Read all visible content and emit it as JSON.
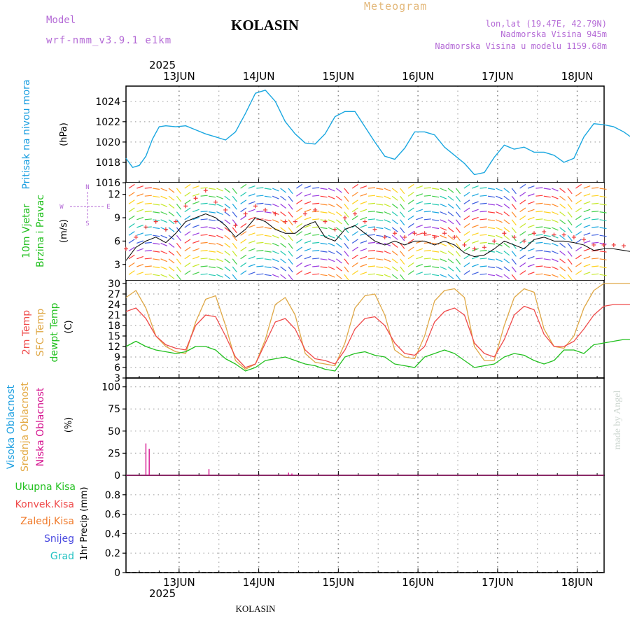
{
  "header": {
    "model_label": "Model",
    "model_name": "wrf-nmm_v3.9.1 e1km",
    "station": "KOLASIN",
    "product": "Meteogram",
    "lonlat": "lon,lat (19.47E, 42.79N)",
    "elevation": "Nadmorska Visina 945m",
    "model_elevation": "Nadmorska Visina u modelu 1159.68m",
    "year": "2025",
    "footer_station": "KOLASIN",
    "watermark": "made by Angel"
  },
  "colors": {
    "pressure": "#1aa7e0",
    "temp2m": "#ef4b4b",
    "sfc": "#dfa846",
    "dew": "#22c01f",
    "cloud_low": "#d5138f",
    "cloud_high": "#1a9ee0",
    "cloud_mid": "#e3a841",
    "wind_speed": "#111111",
    "gust": "#ee3a3a",
    "label_purple": "#b46ad6"
  },
  "x_axis": {
    "day_labels": [
      "13JUN",
      "14JUN",
      "15JUN",
      "16JUN",
      "17JUN",
      "18JUN"
    ]
  },
  "chart_data": [
    {
      "type": "line",
      "id": "pressure",
      "ylabel_lines": [
        "Pritisak na nivou mora"
      ],
      "unit": "(hPa)",
      "ylim": [
        1016,
        1025.5
      ],
      "yticks": [
        1016,
        1018,
        1020,
        1022,
        1024
      ],
      "grid": true,
      "x_hours": [
        0,
        2,
        4,
        6,
        8,
        10,
        12,
        15,
        18,
        21,
        24,
        27,
        30,
        33,
        36,
        39,
        42,
        45,
        48,
        51,
        54,
        57,
        60,
        63,
        66,
        69,
        72,
        75,
        78,
        81,
        84,
        87,
        90,
        93,
        96,
        99,
        102,
        105,
        108,
        111,
        114,
        117,
        120,
        123,
        126,
        129,
        132,
        135,
        138,
        141,
        144,
        147,
        150,
        153,
        156,
        159,
        162,
        165,
        168,
        171,
        174,
        177,
        180,
        183
      ],
      "series": [
        {
          "values": [
            1018.4,
            1017.5,
            1017.7,
            1018.6,
            1020.3,
            1021.5,
            1021.6,
            1021.5,
            1021.6,
            1021.2,
            1020.8,
            1020.5,
            1020.2,
            1021.0,
            1022.8,
            1024.8,
            1025.1,
            1024.0,
            1022.0,
            1020.8,
            1019.9,
            1019.8,
            1020.8,
            1022.5,
            1023.0,
            1023.0,
            1021.5,
            1020.0,
            1018.6,
            1018.3,
            1019.4,
            1021.0,
            1021.0,
            1020.7,
            1019.5,
            1018.7,
            1017.9,
            1016.8,
            1017.0,
            1018.5,
            1019.7,
            1019.3,
            1019.5,
            1019.0,
            1019.0,
            1018.7,
            1018.0,
            1018.4,
            1020.5,
            1021.8,
            1021.7,
            1021.5,
            1021.0,
            1020.3,
            1019.8,
            1019.7,
            1019.8,
            1019.8,
            1019.8,
            1019.8,
            1019.8,
            1019.8,
            1019.8,
            1019.8
          ]
        }
      ]
    },
    {
      "type": "line",
      "id": "wind",
      "ylabel_lines": [
        "10m Vjetar",
        "Brzina i Pravac"
      ],
      "unit": "(m/s)",
      "ylim": [
        1,
        13.5
      ],
      "yticks": [
        3,
        6,
        9,
        12
      ],
      "grid": true,
      "compass": {
        "n": "N",
        "s": "S",
        "w": "W",
        "e": "E"
      },
      "x_hours": [
        0,
        3,
        6,
        9,
        12,
        15,
        18,
        21,
        24,
        27,
        30,
        33,
        36,
        39,
        42,
        45,
        48,
        51,
        54,
        57,
        60,
        63,
        66,
        69,
        72,
        75,
        78,
        81,
        84,
        87,
        90,
        93,
        96,
        99,
        102,
        105,
        108,
        111,
        114,
        117,
        120,
        123,
        126,
        129,
        132,
        135,
        138,
        141,
        144,
        147,
        150,
        153,
        156,
        159
      ],
      "series": [
        {
          "name": "speed",
          "values": [
            3.5,
            5.2,
            6.0,
            6.5,
            5.8,
            7.0,
            8.5,
            9.0,
            9.5,
            9.0,
            8.0,
            6.5,
            7.5,
            9.0,
            8.5,
            7.5,
            7.0,
            7.0,
            8.0,
            8.5,
            6.5,
            6.0,
            7.5,
            8.0,
            7.0,
            6.0,
            5.5,
            6.0,
            5.5,
            6.0,
            6.0,
            5.5,
            6.0,
            5.5,
            4.5,
            4.0,
            4.2,
            5.0,
            6.0,
            5.5,
            5.0,
            6.2,
            6.5,
            6.0,
            6.0,
            5.8,
            5.5,
            4.8,
            5.0,
            5.0,
            4.8,
            4.6,
            4.5,
            3.8
          ]
        },
        {
          "name": "gust",
          "values": [
            5.0,
            6.5,
            7.8,
            8.5,
            7.5,
            8.5,
            10.5,
            11.5,
            12.5,
            11.0,
            10.0,
            8.0,
            9.5,
            10.5,
            10.0,
            9.5,
            8.5,
            8.5,
            9.5,
            10.0,
            8.5,
            7.5,
            9.0,
            9.5,
            8.5,
            7.5,
            6.5,
            7.0,
            6.5,
            7.0,
            7.0,
            6.5,
            7.0,
            6.5,
            5.5,
            5.0,
            5.2,
            6.0,
            7.0,
            6.5,
            6.0,
            7.0,
            7.2,
            6.8,
            6.8,
            6.5,
            6.2,
            5.5,
            5.5,
            5.5,
            5.4,
            5.2,
            5.0,
            4.5
          ]
        }
      ]
    },
    {
      "type": "line",
      "id": "temperature",
      "ylabel_lines": [
        "2m Temp",
        "SFC Temp",
        "dewpt Temp"
      ],
      "unit": "(C)",
      "ylim": [
        3,
        31
      ],
      "yticks": [
        3,
        6,
        9,
        12,
        15,
        18,
        21,
        24,
        27,
        30
      ],
      "grid": true,
      "x_hours": [
        0,
        3,
        6,
        9,
        12,
        15,
        18,
        21,
        24,
        27,
        30,
        33,
        36,
        39,
        42,
        45,
        48,
        51,
        54,
        57,
        60,
        63,
        66,
        69,
        72,
        75,
        78,
        81,
        84,
        87,
        90,
        93,
        96,
        99,
        102,
        105,
        108,
        111,
        114,
        117,
        120,
        123,
        126,
        129,
        132,
        135,
        138,
        141,
        144,
        147,
        150,
        153,
        156,
        159
      ],
      "series": [
        {
          "name": "2m Temp",
          "values": [
            22,
            23,
            20,
            15,
            12.5,
            11.5,
            11,
            18,
            21,
            20.5,
            15,
            9,
            6,
            7,
            13,
            19,
            20,
            17,
            11,
            8.5,
            8,
            7,
            11,
            17,
            20,
            20.5,
            18,
            13,
            10,
            9.5,
            12,
            19,
            22,
            23,
            21,
            13,
            10,
            9,
            14,
            21,
            23.5,
            22.5,
            15.5,
            12,
            12,
            13.5,
            17,
            21,
            23.5,
            24,
            24,
            24,
            24,
            24
          ]
        },
        {
          "name": "SFC Temp",
          "values": [
            26,
            28,
            23,
            15,
            12,
            10.5,
            10,
            19,
            25.5,
            26.5,
            18,
            8,
            5.5,
            7,
            14,
            24,
            26,
            21,
            10,
            7.5,
            7,
            6.5,
            13,
            23,
            26.5,
            27,
            21,
            11,
            9,
            8.5,
            15,
            25,
            28,
            28.5,
            26,
            12,
            8,
            8,
            18,
            26,
            28.5,
            27.5,
            17,
            12,
            11.5,
            15,
            23,
            28,
            30,
            30,
            30,
            30,
            30,
            30
          ]
        },
        {
          "name": "dewpt Temp",
          "values": [
            12,
            13.5,
            12,
            11,
            10.5,
            10,
            10.5,
            12,
            12,
            11,
            8.5,
            7,
            5,
            6,
            8,
            8.5,
            9,
            8,
            7,
            6.5,
            5.5,
            5,
            9,
            10,
            10.5,
            9.5,
            9,
            7,
            6.5,
            6,
            9,
            10,
            11,
            10,
            8,
            6,
            6.5,
            7,
            9,
            10,
            9.5,
            8,
            7,
            8,
            11,
            11,
            10,
            12.5,
            13,
            13.5,
            14,
            14,
            14,
            14
          ]
        }
      ]
    },
    {
      "type": "bar",
      "id": "clouds",
      "ylabel_lines": [
        "Visoka Oblacnost",
        "Srednja Oblacnost",
        "Niska Oblacnost"
      ],
      "unit": "(%)",
      "ylim": [
        0,
        110
      ],
      "yticks": [
        0,
        25,
        50,
        75,
        100
      ],
      "grid": true,
      "series": [
        {
          "name": "Niska Oblacnost",
          "x_hours": [
            6,
            7,
            25,
            49,
            50,
            153,
            158,
            162,
            163
          ],
          "values": [
            36,
            30,
            7,
            3,
            2,
            8,
            21,
            6,
            4
          ]
        },
        {
          "name": "Visoka Oblacnost",
          "x_hours": [],
          "values": []
        },
        {
          "name": "Srednja Oblacnost",
          "x_hours": [],
          "values": []
        }
      ]
    },
    {
      "type": "bar",
      "id": "precip",
      "legend": [
        "Ukupna Kisa",
        "Konvek.Kisa",
        "Zaledj.Kisa",
        "Snijeg",
        "Grad"
      ],
      "unit": "1hr Precip (mm)",
      "ylim": [
        0,
        1.0
      ],
      "yticks": [
        0,
        0.2,
        0.4,
        0.6,
        0.8
      ],
      "grid": true,
      "series": [
        {
          "name": "Ukupna Kisa",
          "values": []
        }
      ]
    }
  ]
}
